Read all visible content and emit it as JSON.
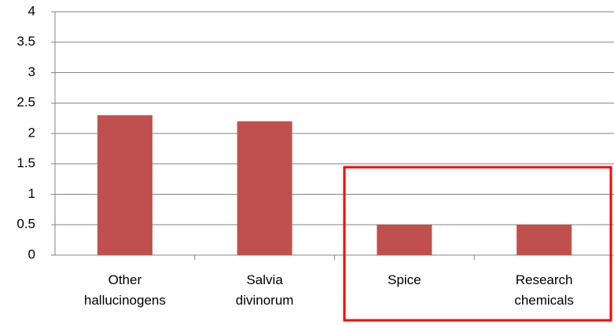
{
  "chart_data": {
    "type": "bar",
    "categories": [
      "Other hallucinogens",
      "Salvia divinorum",
      "Spice",
      "Research chemicals"
    ],
    "values": [
      2.3,
      2.2,
      0.5,
      0.5
    ],
    "color": "#c0504d",
    "ylim": [
      0,
      4
    ],
    "yticks": [
      0,
      0.5,
      1,
      1.5,
      2,
      2.5,
      3,
      3.5,
      4
    ],
    "grid": true
  }
}
